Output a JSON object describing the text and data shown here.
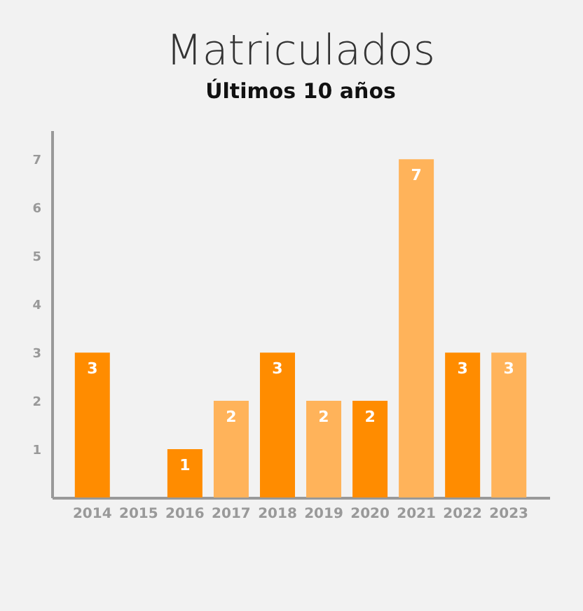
{
  "chart_data": {
    "type": "bar",
    "title": "Matriculados",
    "subtitle": "Últimos 10 años",
    "categories": [
      "2014",
      "2015",
      "2016",
      "2017",
      "2018",
      "2019",
      "2020",
      "2021",
      "2022",
      "2023"
    ],
    "values": [
      3,
      0,
      1,
      2,
      3,
      2,
      2,
      7,
      3,
      3
    ],
    "colors": [
      "#ff8c00",
      "#ff8c00",
      "#ff8c00",
      "#ffb35a",
      "#ff8c00",
      "#ffb35a",
      "#ff8c00",
      "#ffb35a",
      "#ff8c00",
      "#ffb35a"
    ],
    "value_labels": [
      "3",
      null,
      "1",
      "2",
      "3",
      "2",
      "2",
      "7",
      "3",
      "3"
    ],
    "ylim": [
      0,
      7.6
    ],
    "yticks": [
      1,
      2,
      3,
      4,
      5,
      6,
      7
    ],
    "grid": false
  }
}
